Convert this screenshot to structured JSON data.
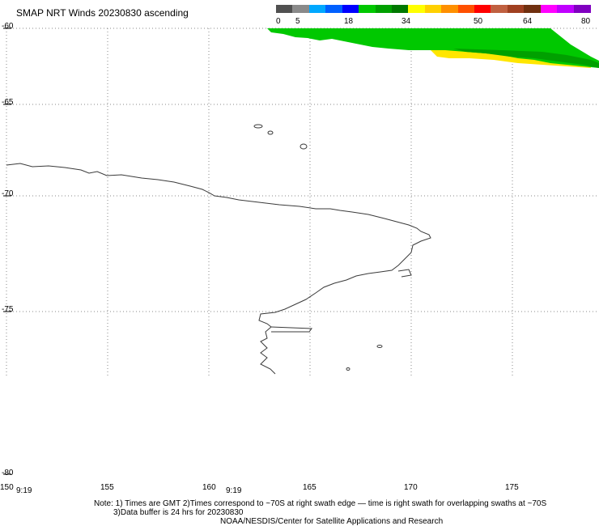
{
  "title": "SMAP NRT Winds 20230830 ascending",
  "legend": {
    "ticks": [
      "0",
      "5",
      "18",
      "34",
      "50",
      "64",
      "80"
    ],
    "colors": [
      "#505050",
      "#8a8a8a",
      "#00a8ff",
      "#0060ff",
      "#0000ff",
      "#00c800",
      "#00a000",
      "#007800",
      "#ffff00",
      "#ffd000",
      "#ff9000",
      "#ff5000",
      "#ff0000",
      "#c06040",
      "#a04020",
      "#703010",
      "#ff00ff",
      "#c000ff",
      "#8000c0"
    ]
  },
  "axes": {
    "lat_labels": [
      "-60",
      "-65",
      "-70",
      "-75",
      "-80"
    ],
    "lon_labels": [
      "150",
      "155",
      "160",
      "165",
      "170",
      "175"
    ],
    "time_labels": [
      "9:19",
      "9:19"
    ]
  },
  "notes": {
    "line1": "Note: 1) Times are GMT 2)Times correspond to ~70S at right swath edge — time is right swath for overlapping swaths at ~70S",
    "line2": "3)Data buffer is 24 hrs for 20230830",
    "line3": "NOAA/NESDIS/Center for Satellite Applications and Research"
  },
  "colors": {
    "swath_green": "#00c800",
    "swath_dark_green": "#008c00",
    "swath_yellow": "#ffe600",
    "coastline": "#3a3a3a",
    "grid": "#888888"
  }
}
